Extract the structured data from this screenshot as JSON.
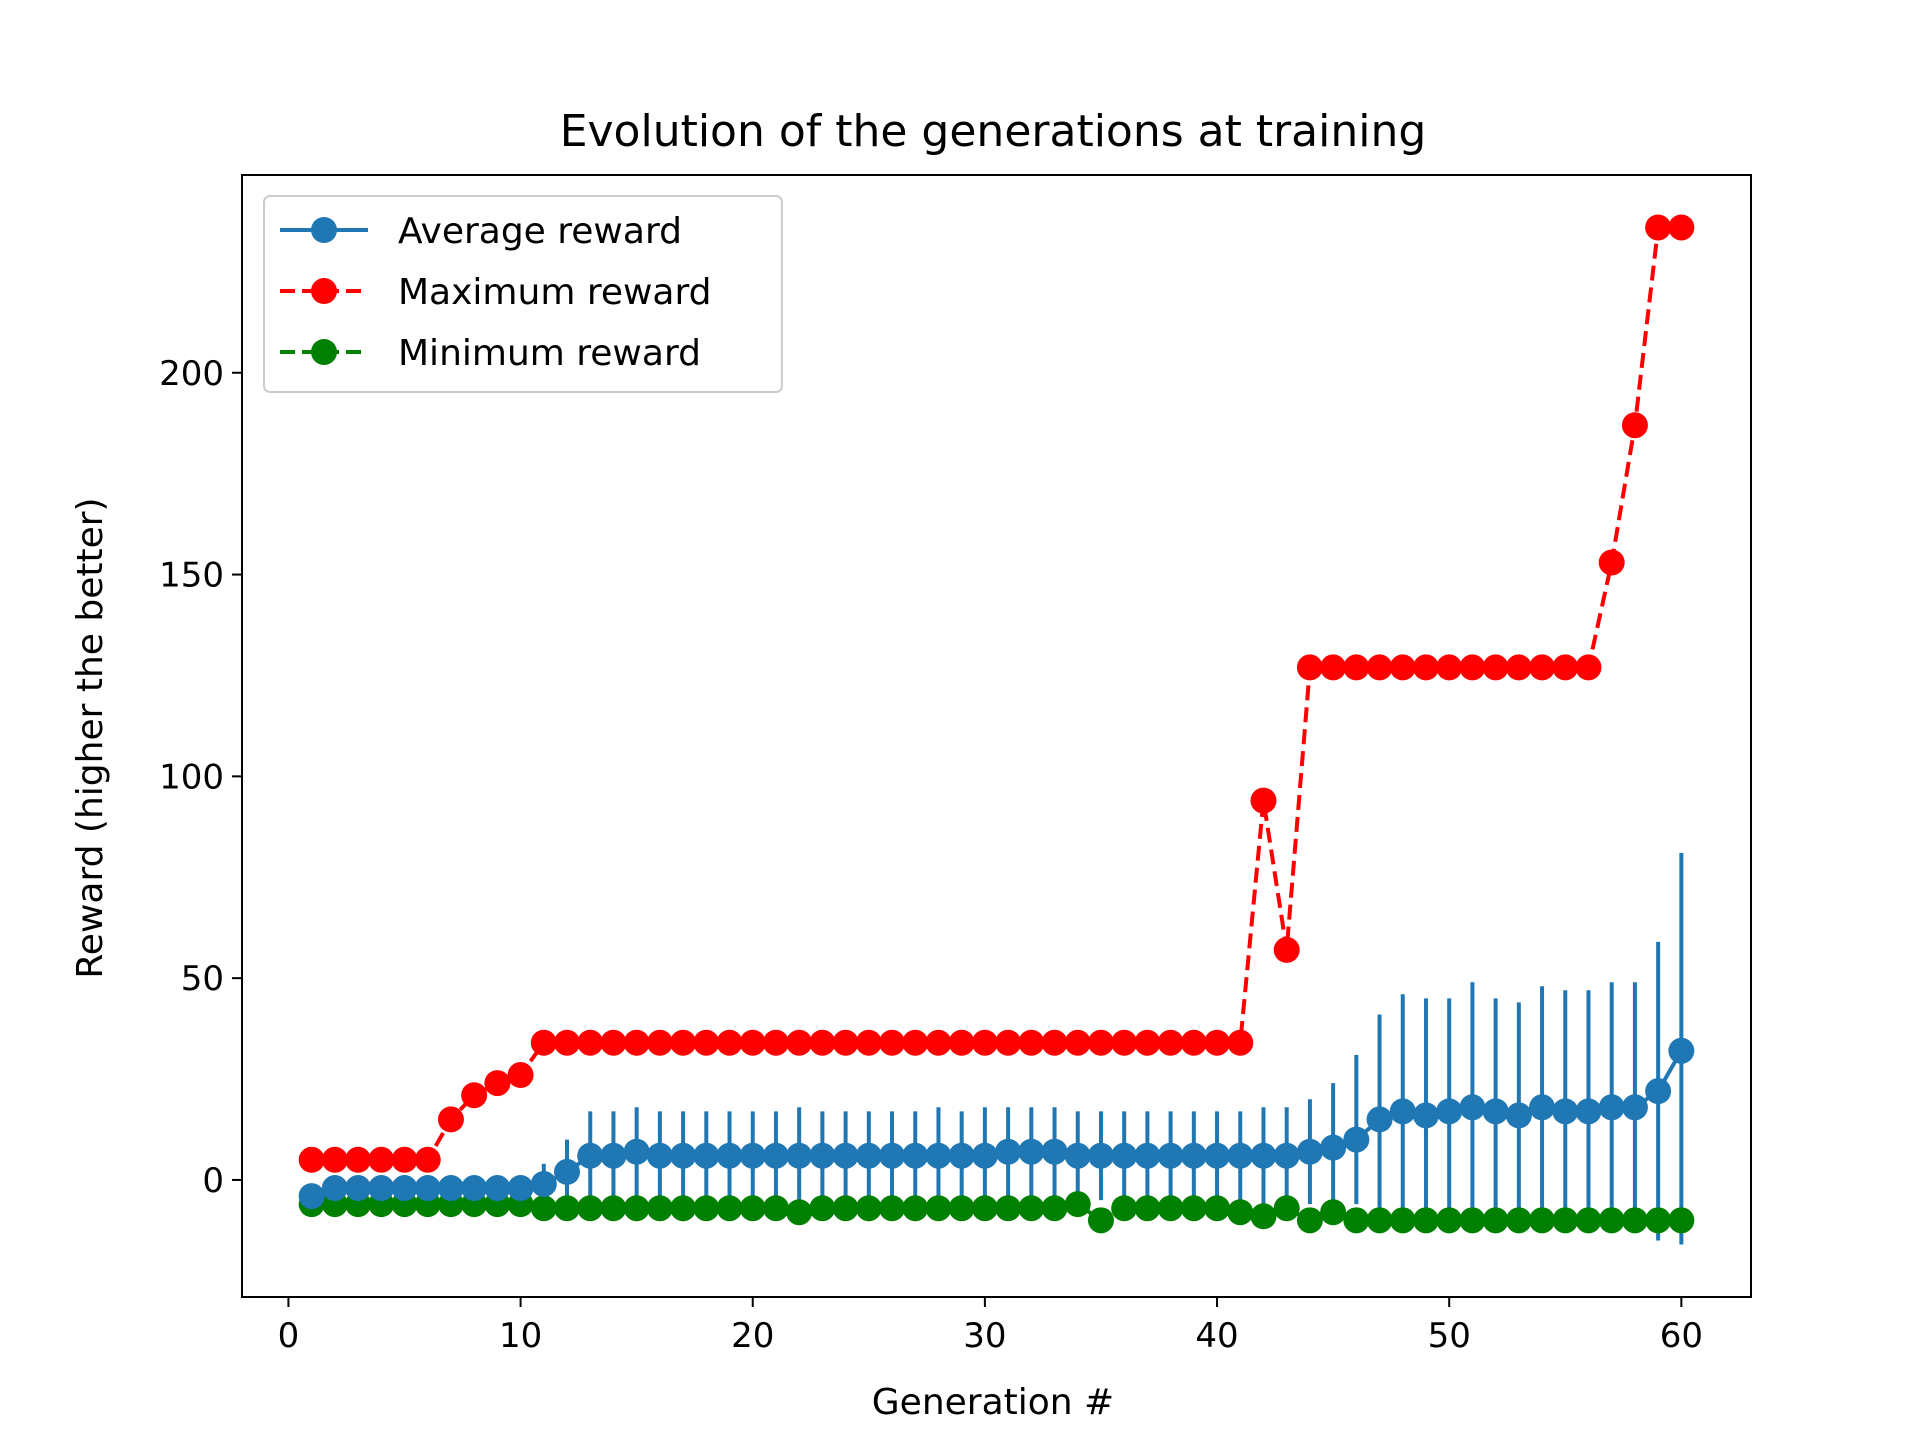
{
  "chart_data": {
    "type": "line",
    "title": "Evolution of the generations at training",
    "xlabel": "Generation #",
    "ylabel": "Reward (higher the better)",
    "xlim": [
      -2,
      63
    ],
    "ylim": [
      -29,
      249
    ],
    "xticks": [
      0,
      10,
      20,
      30,
      40,
      50,
      60
    ],
    "yticks": [
      0,
      50,
      100,
      150,
      200
    ],
    "grid": false,
    "legend_position": "upper-left",
    "x": [
      1,
      2,
      3,
      4,
      5,
      6,
      7,
      8,
      9,
      10,
      11,
      12,
      13,
      14,
      15,
      16,
      17,
      18,
      19,
      20,
      21,
      22,
      23,
      24,
      25,
      26,
      27,
      28,
      29,
      30,
      31,
      32,
      33,
      34,
      35,
      36,
      37,
      38,
      39,
      40,
      41,
      42,
      43,
      44,
      45,
      46,
      47,
      48,
      49,
      50,
      51,
      52,
      53,
      54,
      55,
      56,
      57,
      58,
      59,
      60
    ],
    "series": [
      {
        "name": "Average reward",
        "color": "#1f77b4",
        "line_style": "solid",
        "values": [
          -4,
          -2,
          -2,
          -2,
          -2,
          -2,
          -2,
          -2,
          -2,
          -2,
          -1,
          2,
          6,
          6,
          7,
          6,
          6,
          6,
          6,
          6,
          6,
          6,
          6,
          6,
          6,
          6,
          6,
          6,
          6,
          6,
          7,
          7,
          7,
          6,
          6,
          6,
          6,
          6,
          6,
          6,
          6,
          6,
          6,
          7,
          8,
          10,
          15,
          17,
          16,
          17,
          18,
          17,
          16,
          18,
          17,
          17,
          18,
          18,
          22,
          32
        ],
        "error_low": [
          -5,
          -5,
          -5,
          -5,
          -5,
          -5,
          -5,
          -5,
          -5,
          -5,
          -5,
          -6,
          -6,
          -6,
          -6,
          -6,
          -6,
          -6,
          -6,
          -6,
          -6,
          -6,
          -6,
          -6,
          -6,
          -6,
          -6,
          -6,
          -6,
          -6,
          -6,
          -6,
          -6,
          -6,
          -5,
          -6,
          -6,
          -6,
          -6,
          -6,
          -6,
          -6,
          -6,
          -6,
          -6,
          -6,
          -10,
          -10,
          -10,
          -10,
          -10,
          -10,
          -10,
          -10,
          -10,
          -10,
          -10,
          -10,
          -15,
          -16
        ],
        "error_high": [
          -4,
          -1,
          -1,
          -1,
          -1,
          -1,
          -1,
          -1,
          -1,
          -1,
          4,
          10,
          17,
          17,
          18,
          17,
          17,
          17,
          17,
          17,
          17,
          18,
          17,
          17,
          17,
          17,
          17,
          18,
          17,
          18,
          18,
          18,
          18,
          17,
          17,
          17,
          17,
          17,
          17,
          17,
          17,
          18,
          18,
          20,
          24,
          31,
          41,
          46,
          45,
          45,
          49,
          45,
          44,
          48,
          47,
          47,
          49,
          49,
          59,
          81
        ]
      },
      {
        "name": "Maximum reward",
        "color": "#ff0000",
        "line_style": "dashed",
        "values": [
          5,
          5,
          5,
          5,
          5,
          5,
          15,
          21,
          24,
          26,
          34,
          34,
          34,
          34,
          34,
          34,
          34,
          34,
          34,
          34,
          34,
          34,
          34,
          34,
          34,
          34,
          34,
          34,
          34,
          34,
          34,
          34,
          34,
          34,
          34,
          34,
          34,
          34,
          34,
          34,
          34,
          94,
          57,
          127,
          127,
          127,
          127,
          127,
          127,
          127,
          127,
          127,
          127,
          127,
          127,
          127,
          153,
          187,
          236,
          236
        ]
      },
      {
        "name": "Minimum reward",
        "color": "#008000",
        "line_style": "dashed",
        "values": [
          -6,
          -6,
          -6,
          -6,
          -6,
          -6,
          -6,
          -6,
          -6,
          -6,
          -7,
          -7,
          -7,
          -7,
          -7,
          -7,
          -7,
          -7,
          -7,
          -7,
          -7,
          -8,
          -7,
          -7,
          -7,
          -7,
          -7,
          -7,
          -7,
          -7,
          -7,
          -7,
          -7,
          -6,
          -10,
          -7,
          -7,
          -7,
          -7,
          -7,
          -8,
          -9,
          -7,
          -10,
          -8,
          -10,
          -10,
          -10,
          -10,
          -10,
          -10,
          -10,
          -10,
          -10,
          -10,
          -10,
          -10,
          -10,
          -10,
          -10
        ]
      }
    ]
  }
}
